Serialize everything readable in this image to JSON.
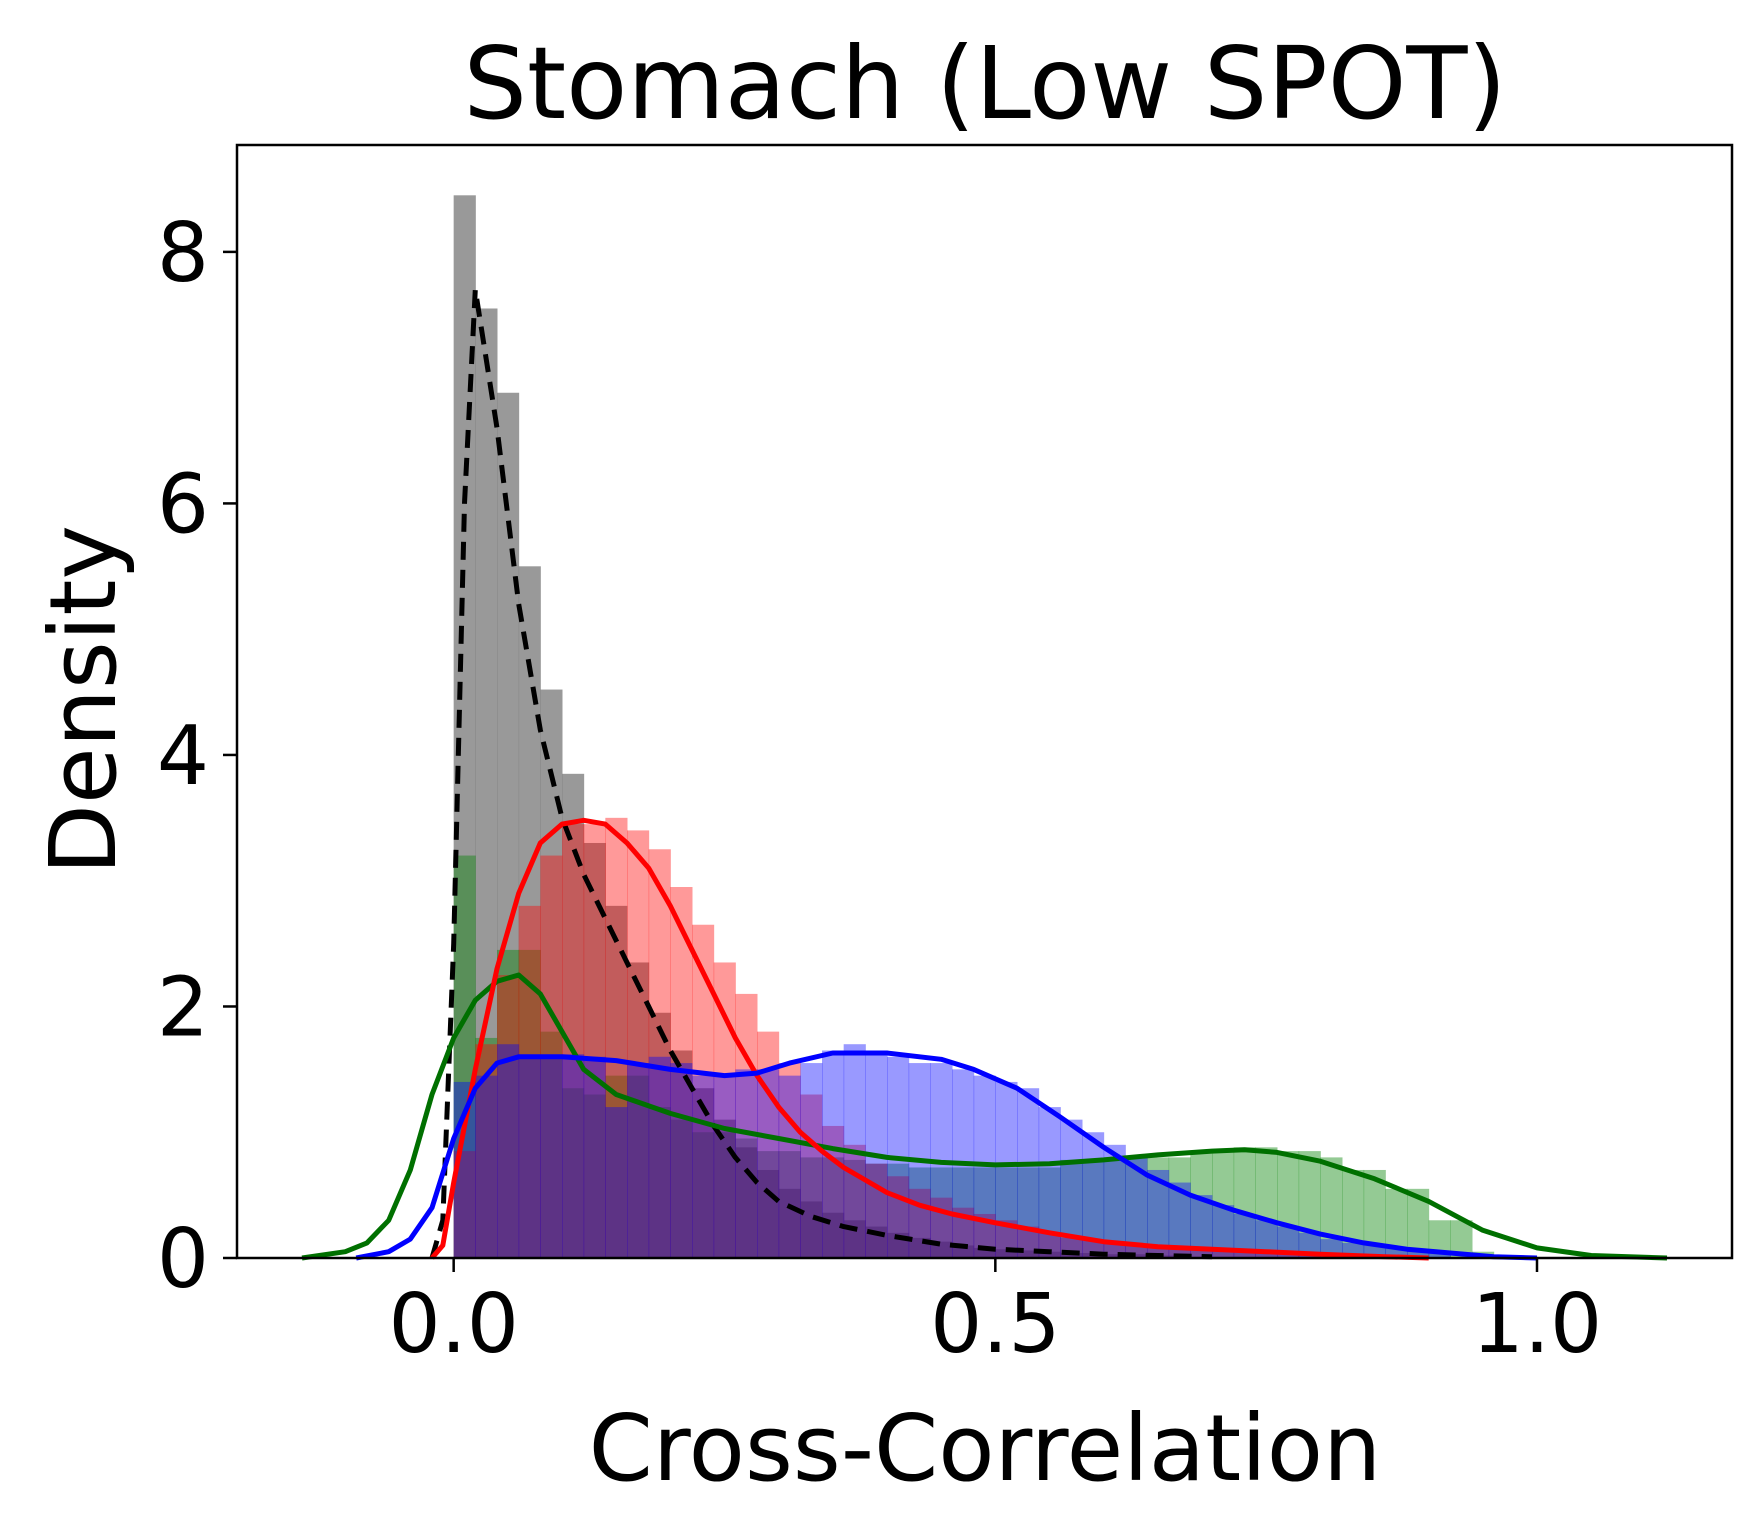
{
  "chart_data": {
    "type": "histogram-kde",
    "title": "Stomach (Low SPOT)",
    "xlabel": "Cross-Correlation",
    "ylabel": "Density",
    "xlim": [
      -0.2,
      1.18
    ],
    "ylim": [
      0,
      8.85
    ],
    "xticks": [
      0.0,
      0.5,
      1.0
    ],
    "xtick_labels": [
      "0.0",
      "0.5",
      "1.0"
    ],
    "yticks": [
      0,
      2,
      4,
      6,
      8
    ],
    "ytick_labels": [
      "0",
      "2",
      "4",
      "6",
      "8"
    ],
    "grid": false,
    "bin_width": 0.02,
    "series": [
      {
        "color": "#808080",
        "hist_opacity": 0.8,
        "kde_dash": true,
        "kde_color": "#000000",
        "bins": [
          [
            0.0,
            8.45
          ],
          [
            0.02,
            7.55
          ],
          [
            0.04,
            6.88
          ],
          [
            0.06,
            5.5
          ],
          [
            0.08,
            4.52
          ],
          [
            0.1,
            3.85
          ],
          [
            0.12,
            3.3
          ],
          [
            0.14,
            2.8
          ],
          [
            0.16,
            2.35
          ],
          [
            0.18,
            1.95
          ],
          [
            0.2,
            1.65
          ],
          [
            0.22,
            1.35
          ],
          [
            0.24,
            1.1
          ],
          [
            0.26,
            0.88
          ],
          [
            0.28,
            0.7
          ],
          [
            0.3,
            0.55
          ],
          [
            0.32,
            0.45
          ],
          [
            0.34,
            0.36
          ],
          [
            0.36,
            0.3
          ],
          [
            0.38,
            0.25
          ],
          [
            0.4,
            0.2
          ],
          [
            0.42,
            0.16
          ],
          [
            0.44,
            0.13
          ],
          [
            0.46,
            0.1
          ],
          [
            0.48,
            0.08
          ],
          [
            0.5,
            0.07
          ],
          [
            0.52,
            0.06
          ],
          [
            0.54,
            0.05
          ],
          [
            0.56,
            0.04
          ],
          [
            0.58,
            0.04
          ],
          [
            0.6,
            0.03
          ],
          [
            0.62,
            0.03
          ],
          [
            0.64,
            0.02
          ],
          [
            0.66,
            0.02
          ]
        ],
        "kde": [
          [
            -0.02,
            0.0
          ],
          [
            -0.01,
            0.3
          ],
          [
            0.0,
            2.5
          ],
          [
            0.01,
            6.0
          ],
          [
            0.02,
            7.7
          ],
          [
            0.04,
            6.6
          ],
          [
            0.06,
            5.2
          ],
          [
            0.08,
            4.2
          ],
          [
            0.1,
            3.5
          ],
          [
            0.12,
            3.05
          ],
          [
            0.14,
            2.7
          ],
          [
            0.16,
            2.35
          ],
          [
            0.18,
            2.0
          ],
          [
            0.2,
            1.65
          ],
          [
            0.22,
            1.35
          ],
          [
            0.24,
            1.05
          ],
          [
            0.26,
            0.8
          ],
          [
            0.28,
            0.6
          ],
          [
            0.3,
            0.45
          ],
          [
            0.33,
            0.33
          ],
          [
            0.36,
            0.25
          ],
          [
            0.4,
            0.18
          ],
          [
            0.45,
            0.11
          ],
          [
            0.5,
            0.07
          ],
          [
            0.55,
            0.05
          ],
          [
            0.6,
            0.03
          ],
          [
            0.65,
            0.02
          ],
          [
            0.7,
            0.01
          ]
        ]
      },
      {
        "color": "#008000",
        "hist_opacity": 0.42,
        "kde_dash": false,
        "kde_color": "#007000",
        "bins": [
          [
            0.0,
            3.2
          ],
          [
            0.02,
            1.75
          ],
          [
            0.04,
            2.45
          ],
          [
            0.06,
            2.45
          ],
          [
            0.08,
            1.8
          ],
          [
            0.1,
            1.35
          ],
          [
            0.12,
            1.3
          ],
          [
            0.14,
            1.45
          ],
          [
            0.16,
            1.45
          ],
          [
            0.18,
            1.2
          ],
          [
            0.2,
            1.1
          ],
          [
            0.22,
            1.0
          ],
          [
            0.24,
            1.0
          ],
          [
            0.26,
            0.95
          ],
          [
            0.28,
            0.85
          ],
          [
            0.3,
            0.85
          ],
          [
            0.32,
            0.8
          ],
          [
            0.34,
            0.8
          ],
          [
            0.36,
            0.78
          ],
          [
            0.38,
            0.75
          ],
          [
            0.4,
            0.75
          ],
          [
            0.42,
            0.72
          ],
          [
            0.44,
            0.72
          ],
          [
            0.46,
            0.72
          ],
          [
            0.48,
            0.72
          ],
          [
            0.5,
            0.72
          ],
          [
            0.52,
            0.72
          ],
          [
            0.54,
            0.72
          ],
          [
            0.56,
            0.78
          ],
          [
            0.58,
            0.78
          ],
          [
            0.6,
            0.8
          ],
          [
            0.62,
            0.8
          ],
          [
            0.64,
            0.8
          ],
          [
            0.66,
            0.8
          ],
          [
            0.68,
            0.85
          ],
          [
            0.7,
            0.85
          ],
          [
            0.72,
            0.88
          ],
          [
            0.74,
            0.88
          ],
          [
            0.76,
            0.85
          ],
          [
            0.78,
            0.85
          ],
          [
            0.8,
            0.8
          ],
          [
            0.82,
            0.7
          ],
          [
            0.84,
            0.7
          ],
          [
            0.86,
            0.55
          ],
          [
            0.88,
            0.55
          ],
          [
            0.9,
            0.3
          ],
          [
            0.92,
            0.3
          ],
          [
            0.94,
            0.05
          ]
        ],
        "kde": [
          [
            -0.14,
            0.0
          ],
          [
            -0.1,
            0.05
          ],
          [
            -0.08,
            0.12
          ],
          [
            -0.06,
            0.3
          ],
          [
            -0.04,
            0.7
          ],
          [
            -0.02,
            1.3
          ],
          [
            0.0,
            1.75
          ],
          [
            0.02,
            2.05
          ],
          [
            0.04,
            2.2
          ],
          [
            0.06,
            2.25
          ],
          [
            0.08,
            2.1
          ],
          [
            0.1,
            1.8
          ],
          [
            0.12,
            1.5
          ],
          [
            0.15,
            1.3
          ],
          [
            0.2,
            1.15
          ],
          [
            0.25,
            1.03
          ],
          [
            0.3,
            0.95
          ],
          [
            0.35,
            0.87
          ],
          [
            0.4,
            0.8
          ],
          [
            0.45,
            0.76
          ],
          [
            0.5,
            0.74
          ],
          [
            0.55,
            0.75
          ],
          [
            0.6,
            0.78
          ],
          [
            0.65,
            0.82
          ],
          [
            0.7,
            0.85
          ],
          [
            0.73,
            0.86
          ],
          [
            0.76,
            0.84
          ],
          [
            0.8,
            0.77
          ],
          [
            0.85,
            0.63
          ],
          [
            0.9,
            0.45
          ],
          [
            0.95,
            0.22
          ],
          [
            1.0,
            0.08
          ],
          [
            1.05,
            0.02
          ],
          [
            1.12,
            0.0
          ]
        ]
      },
      {
        "color": "#ff0000",
        "hist_opacity": 0.4,
        "kde_dash": false,
        "kde_color": "#ff0000",
        "bins": [
          [
            0.0,
            0.85
          ],
          [
            0.02,
            1.7
          ],
          [
            0.04,
            2.25
          ],
          [
            0.06,
            2.8
          ],
          [
            0.08,
            3.2
          ],
          [
            0.1,
            3.45
          ],
          [
            0.12,
            3.45
          ],
          [
            0.14,
            3.5
          ],
          [
            0.16,
            3.4
          ],
          [
            0.18,
            3.25
          ],
          [
            0.2,
            2.95
          ],
          [
            0.22,
            2.65
          ],
          [
            0.24,
            2.35
          ],
          [
            0.26,
            2.1
          ],
          [
            0.28,
            1.8
          ],
          [
            0.3,
            1.55
          ],
          [
            0.32,
            1.3
          ],
          [
            0.34,
            1.05
          ],
          [
            0.36,
            0.9
          ],
          [
            0.38,
            0.75
          ],
          [
            0.4,
            0.65
          ],
          [
            0.42,
            0.55
          ],
          [
            0.44,
            0.48
          ],
          [
            0.46,
            0.4
          ],
          [
            0.48,
            0.35
          ],
          [
            0.5,
            0.3
          ],
          [
            0.52,
            0.25
          ],
          [
            0.54,
            0.2
          ],
          [
            0.56,
            0.16
          ],
          [
            0.58,
            0.14
          ],
          [
            0.6,
            0.12
          ],
          [
            0.62,
            0.1
          ],
          [
            0.64,
            0.1
          ],
          [
            0.66,
            0.08
          ],
          [
            0.68,
            0.08
          ],
          [
            0.7,
            0.06
          ],
          [
            0.72,
            0.06
          ],
          [
            0.74,
            0.05
          ],
          [
            0.76,
            0.04
          ],
          [
            0.78,
            0.03
          ]
        ],
        "kde": [
          [
            -0.02,
            0.0
          ],
          [
            -0.01,
            0.1
          ],
          [
            0.0,
            0.6
          ],
          [
            0.02,
            1.5
          ],
          [
            0.04,
            2.3
          ],
          [
            0.06,
            2.9
          ],
          [
            0.08,
            3.3
          ],
          [
            0.1,
            3.45
          ],
          [
            0.12,
            3.48
          ],
          [
            0.14,
            3.45
          ],
          [
            0.16,
            3.3
          ],
          [
            0.18,
            3.1
          ],
          [
            0.2,
            2.8
          ],
          [
            0.22,
            2.45
          ],
          [
            0.24,
            2.1
          ],
          [
            0.26,
            1.75
          ],
          [
            0.28,
            1.45
          ],
          [
            0.3,
            1.2
          ],
          [
            0.32,
            1.0
          ],
          [
            0.34,
            0.85
          ],
          [
            0.36,
            0.72
          ],
          [
            0.38,
            0.62
          ],
          [
            0.4,
            0.52
          ],
          [
            0.43,
            0.42
          ],
          [
            0.46,
            0.35
          ],
          [
            0.5,
            0.28
          ],
          [
            0.55,
            0.2
          ],
          [
            0.6,
            0.13
          ],
          [
            0.65,
            0.09
          ],
          [
            0.7,
            0.07
          ],
          [
            0.75,
            0.05
          ],
          [
            0.8,
            0.03
          ],
          [
            0.86,
            0.01
          ],
          [
            0.9,
            0.0
          ]
        ]
      },
      {
        "color": "#0000ff",
        "hist_opacity": 0.4,
        "kde_dash": false,
        "kde_color": "#0000ff",
        "bins": [
          [
            0.0,
            1.4
          ],
          [
            0.02,
            1.45
          ],
          [
            0.04,
            1.7
          ],
          [
            0.06,
            1.6
          ],
          [
            0.08,
            1.6
          ],
          [
            0.1,
            1.62
          ],
          [
            0.12,
            1.6
          ],
          [
            0.14,
            1.2
          ],
          [
            0.16,
            1.55
          ],
          [
            0.18,
            1.6
          ],
          [
            0.2,
            1.55
          ],
          [
            0.22,
            1.45
          ],
          [
            0.24,
            1.45
          ],
          [
            0.26,
            1.5
          ],
          [
            0.28,
            1.5
          ],
          [
            0.3,
            1.45
          ],
          [
            0.32,
            1.55
          ],
          [
            0.34,
            1.65
          ],
          [
            0.36,
            1.7
          ],
          [
            0.38,
            1.65
          ],
          [
            0.4,
            1.6
          ],
          [
            0.42,
            1.55
          ],
          [
            0.44,
            1.55
          ],
          [
            0.46,
            1.5
          ],
          [
            0.48,
            1.45
          ],
          [
            0.5,
            1.4
          ],
          [
            0.52,
            1.35
          ],
          [
            0.54,
            1.2
          ],
          [
            0.56,
            1.1
          ],
          [
            0.58,
            1.0
          ],
          [
            0.6,
            0.9
          ],
          [
            0.62,
            0.8
          ],
          [
            0.64,
            0.7
          ],
          [
            0.66,
            0.6
          ],
          [
            0.68,
            0.5
          ],
          [
            0.7,
            0.42
          ],
          [
            0.72,
            0.35
          ],
          [
            0.74,
            0.3
          ],
          [
            0.76,
            0.25
          ],
          [
            0.78,
            0.2
          ],
          [
            0.8,
            0.15
          ],
          [
            0.82,
            0.12
          ],
          [
            0.84,
            0.1
          ],
          [
            0.86,
            0.08
          ],
          [
            0.88,
            0.06
          ],
          [
            0.9,
            0.04
          ]
        ],
        "kde": [
          [
            -0.09,
            0.0
          ],
          [
            -0.06,
            0.05
          ],
          [
            -0.04,
            0.15
          ],
          [
            -0.02,
            0.4
          ],
          [
            0.0,
            0.95
          ],
          [
            0.02,
            1.35
          ],
          [
            0.04,
            1.55
          ],
          [
            0.06,
            1.6
          ],
          [
            0.1,
            1.6
          ],
          [
            0.15,
            1.57
          ],
          [
            0.2,
            1.5
          ],
          [
            0.25,
            1.45
          ],
          [
            0.28,
            1.47
          ],
          [
            0.31,
            1.55
          ],
          [
            0.35,
            1.63
          ],
          [
            0.4,
            1.63
          ],
          [
            0.45,
            1.58
          ],
          [
            0.48,
            1.5
          ],
          [
            0.52,
            1.35
          ],
          [
            0.56,
            1.12
          ],
          [
            0.6,
            0.88
          ],
          [
            0.64,
            0.66
          ],
          [
            0.68,
            0.5
          ],
          [
            0.72,
            0.38
          ],
          [
            0.76,
            0.28
          ],
          [
            0.8,
            0.19
          ],
          [
            0.84,
            0.12
          ],
          [
            0.88,
            0.07
          ],
          [
            0.92,
            0.04
          ],
          [
            0.96,
            0.01
          ],
          [
            1.0,
            0.0
          ]
        ]
      }
    ]
  }
}
